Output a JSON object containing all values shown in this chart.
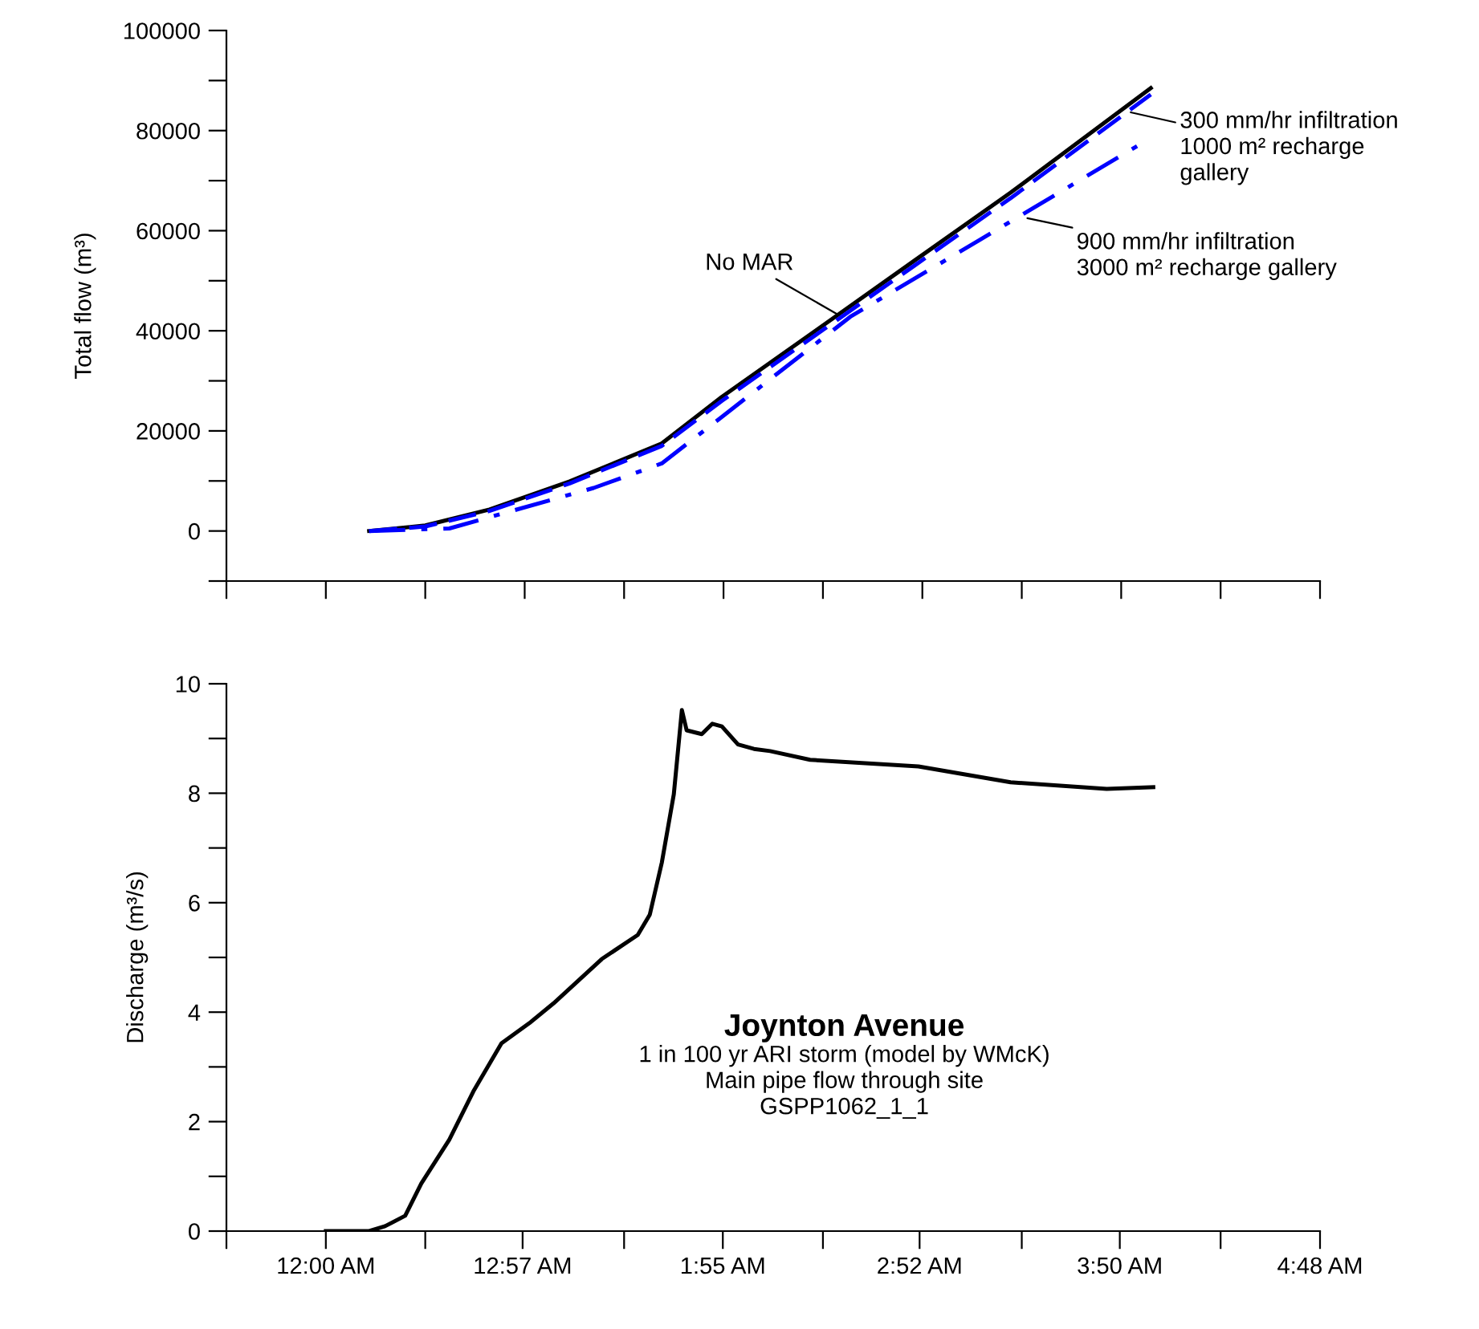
{
  "chart_data": [
    {
      "type": "line",
      "ylabel": "Total flow (m³)",
      "tick_labels": "y",
      "grid": false,
      "legend": false,
      "xlim": [
        -0.48,
        4.8
      ],
      "xticks": [
        {
          "value": -0.48,
          "label": null
        },
        {
          "value": 0,
          "label": null
        },
        {
          "value": 0.48,
          "label": null
        },
        {
          "value": 0.96,
          "label": null
        },
        {
          "value": 1.44,
          "label": null
        },
        {
          "value": 1.92,
          "label": null
        },
        {
          "value": 2.4,
          "label": null
        },
        {
          "value": 2.88,
          "label": null
        },
        {
          "value": 3.36,
          "label": null
        },
        {
          "value": 3.84,
          "label": null
        },
        {
          "value": 4.32,
          "label": null
        },
        {
          "value": 4.8,
          "label": null
        }
      ],
      "ylim": [
        -10000,
        100000
      ],
      "yticks": [
        {
          "value": -10000,
          "label": null
        },
        0,
        {
          "value": 10000,
          "label": null
        },
        20000,
        {
          "value": 30000,
          "label": null
        },
        40000,
        {
          "value": 50000,
          "label": null
        },
        60000,
        {
          "value": 70000,
          "label": null
        },
        80000,
        {
          "value": 90000,
          "label": null
        },
        100000
      ],
      "series": [
        {
          "color": "#000000",
          "line_style": "solid",
          "x": [
            0.209,
            0.48,
            0.79,
            1.177,
            1.622,
            1.912,
            2.377,
            2.841,
            3.306,
            3.983
          ],
          "values": [
            0,
            1100,
            4300,
            9900,
            17500,
            26800,
            40400,
            54000,
            67600,
            88500
          ]
        },
        {
          "color": "#0000ff",
          "line_style": "dashed",
          "x": [
            0.209,
            0.48,
            0.79,
            1.177,
            1.622,
            1.912,
            2.377,
            2.841,
            3.306,
            3.983
          ],
          "values": [
            0,
            900,
            4000,
            9500,
            17000,
            26000,
            39500,
            53000,
            66500,
            87200
          ]
        },
        {
          "color": "#0000ff",
          "line_style": "dashdot",
          "x": [
            0.209,
            0.596,
            1.293,
            1.622,
            1.912,
            2.532,
            3.151,
            3.945
          ],
          "values": [
            0,
            500,
            8600,
            13500,
            22800,
            42800,
            58000,
            77600
          ]
        }
      ],
      "annotations": [
        {
          "text": "No MAR",
          "x": 2.474,
          "y": 43200
        },
        {
          "text": "300 mm/hr infiltration\n1000 m² recharge\ngallery",
          "x": 3.886,
          "y": 83650
        },
        {
          "text": "900 mm/hr infiltration\n3000 m² recharge gallery",
          "x": 3.387,
          "y": 62500
        }
      ]
    },
    {
      "type": "line",
      "title": "Joynton Avenue",
      "subtitle": "1 in 100 yr ARI storm (model by WMcK)\nMain pipe flow through site\nGSPP1062_1_1",
      "ylabel": "Discharge (m³/s)",
      "grid": false,
      "legend": false,
      "xlim": [
        -0.48,
        4.8
      ],
      "xticks": [
        {
          "value": -0.48,
          "label": null
        },
        {
          "value": 0,
          "label": "12:00 AM"
        },
        {
          "value": 0.48,
          "label": null
        },
        {
          "value": 0.95,
          "label": "12:57 AM"
        },
        {
          "value": 1.44,
          "label": null
        },
        {
          "value": 1.9167,
          "label": "1:55 AM"
        },
        {
          "value": 2.4,
          "label": null
        },
        {
          "value": 2.8667,
          "label": "2:52 AM"
        },
        {
          "value": 3.36,
          "label": null
        },
        {
          "value": 3.8333,
          "label": "3:50 AM"
        },
        {
          "value": 4.32,
          "label": null
        },
        {
          "value": 4.8,
          "label": "4:48 AM"
        }
      ],
      "ylim": [
        0,
        10
      ],
      "yticks": [
        0,
        {
          "value": 1,
          "label": null
        },
        2,
        {
          "value": 3,
          "label": null
        },
        4,
        {
          "value": 5,
          "label": null
        },
        6,
        {
          "value": 7,
          "label": null
        },
        8,
        {
          "value": 9,
          "label": null
        },
        10
      ],
      "series": [
        {
          "color": "#000000",
          "line_style": "solid",
          "x": [
            0,
            0.209,
            0.286,
            0.383,
            0.461,
            0.596,
            0.712,
            0.848,
            0.983,
            1.099,
            1.332,
            1.506,
            1.564,
            1.622,
            1.68,
            1.719,
            1.742,
            1.815,
            1.866,
            1.912,
            1.99,
            2.067,
            2.145,
            2.338,
            2.861,
            3.306,
            3.77,
            3.995
          ],
          "values": [
            0,
            0,
            0.09,
            0.28,
            0.87,
            1.67,
            2.55,
            3.43,
            3.8,
            4.16,
            4.97,
            5.41,
            5.78,
            6.73,
            7.98,
            9.52,
            9.15,
            9.08,
            9.27,
            9.22,
            8.89,
            8.81,
            8.77,
            8.61,
            8.49,
            8.2,
            8.08,
            8.11
          ]
        }
      ]
    }
  ]
}
